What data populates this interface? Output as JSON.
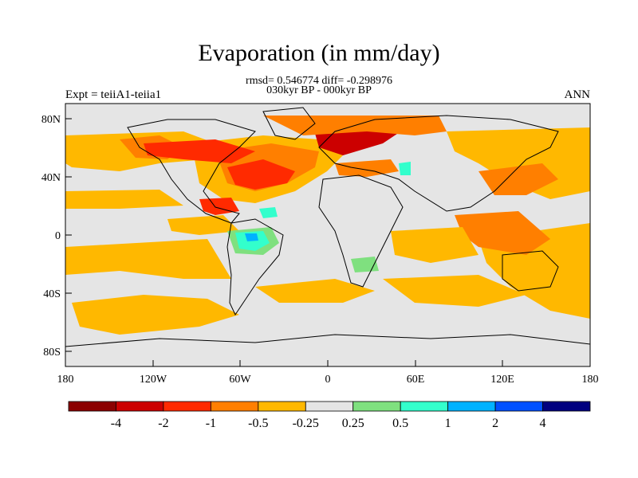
{
  "title": "Evaporation (in mm/day)",
  "stats_line": "rmsd= 0.546774 diff= -0.298976",
  "period_line": "030kyr BP - 000kyr BP",
  "experiment_label": "Expt = teiiA1-teiia1",
  "season_label": "ANN",
  "lat_ticks": [
    "80N",
    "40N",
    "0",
    "40S",
    "80S"
  ],
  "lon_ticks": [
    "180",
    "120W",
    "60W",
    "0",
    "60E",
    "120E",
    "180"
  ],
  "colorbar": {
    "labels": [
      "-4",
      "-2",
      "-1",
      "-0.5",
      "-0.25",
      "0.25",
      "0.5",
      "1",
      "2",
      "4"
    ],
    "colors": [
      "#8b0000",
      "#cc0000",
      "#ff2a00",
      "#ff7f00",
      "#ffb800",
      "#e5e5e5",
      "#7fe07f",
      "#33ffcc",
      "#00b2ff",
      "#0050ff",
      "#00007f"
    ]
  },
  "colors": {
    "ocean_neutral": "#e5e5e5",
    "coastline": "#000000"
  }
}
